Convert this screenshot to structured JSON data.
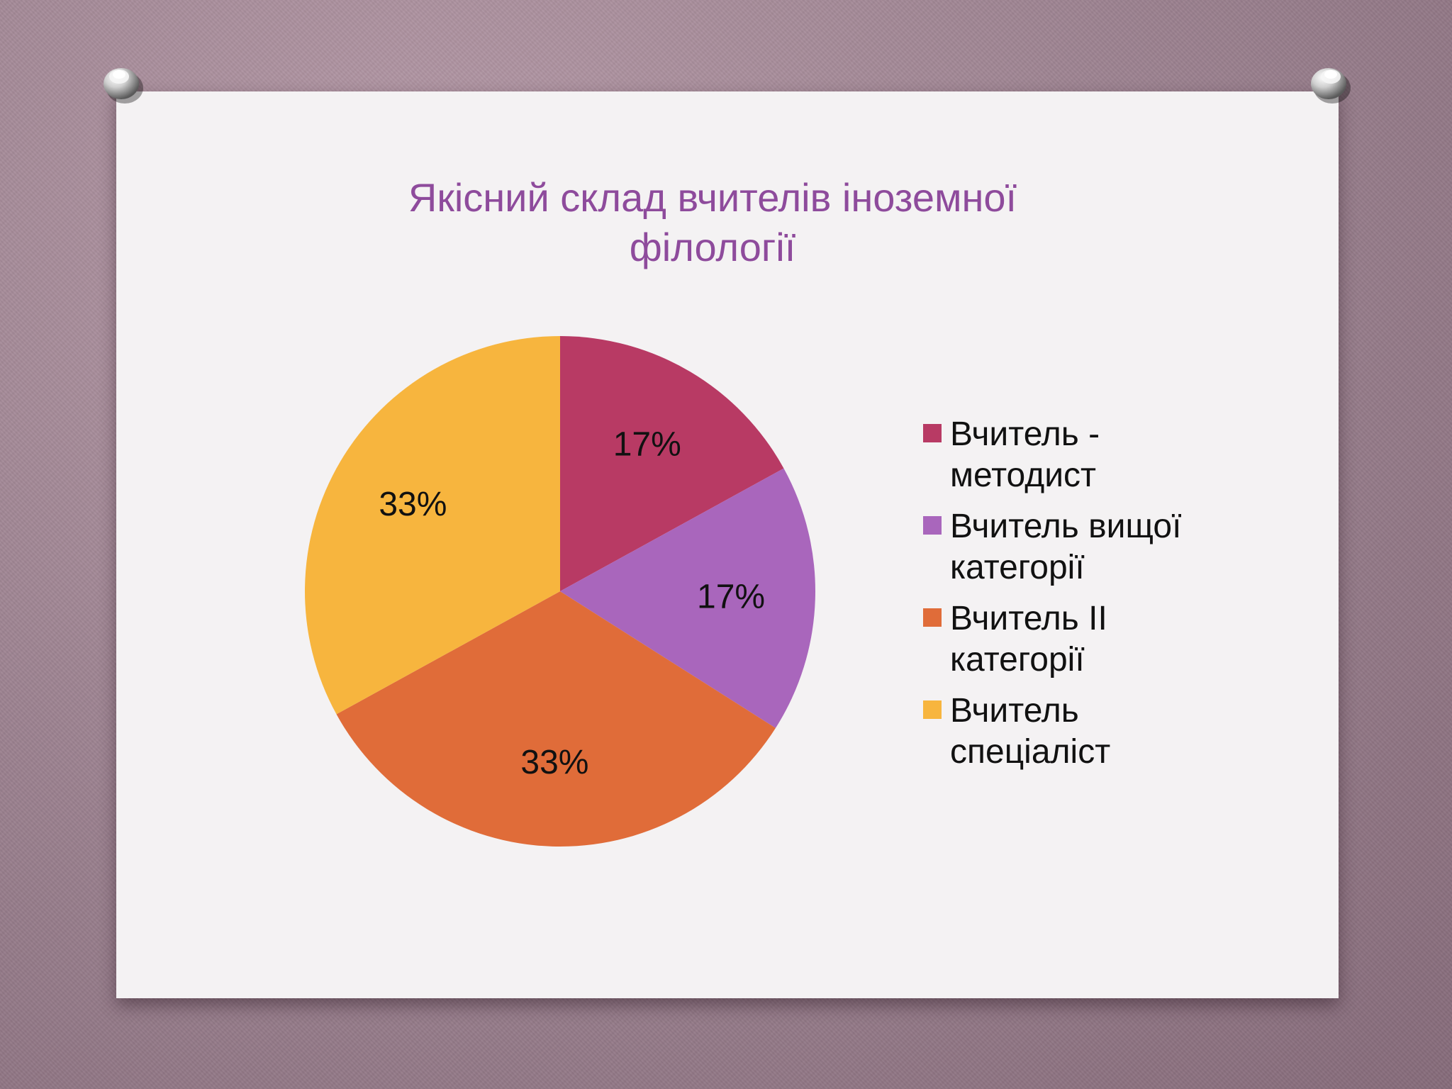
{
  "chart_data": {
    "type": "pie",
    "title_lines": [
      "Якісний склад вчителів іноземної",
      "філології"
    ],
    "categories": [
      "Вчитель - методист",
      "Вчитель вищої категорії",
      "Вчитель II категорії",
      "Вчитель спеціаліст"
    ],
    "values": [
      17,
      17,
      33,
      33
    ],
    "data_labels": [
      "17%",
      "17%",
      "33%",
      "33%"
    ],
    "colors": [
      "#b83a64",
      "#a966bc",
      "#e06c39",
      "#f7b53e"
    ],
    "legend": {
      "placement": "right",
      "entries": [
        {
          "lines": [
            "Вчитель -",
            "методист"
          ],
          "color": "#b83a64"
        },
        {
          "lines": [
            "Вчитель вищої",
            "категорії"
          ],
          "color": "#a966bc"
        },
        {
          "lines": [
            "Вчитель II",
            "категорії"
          ],
          "color": "#e06c39"
        },
        {
          "lines": [
            "Вчитель",
            "спеціаліст"
          ],
          "color": "#f7b53e"
        }
      ]
    }
  }
}
